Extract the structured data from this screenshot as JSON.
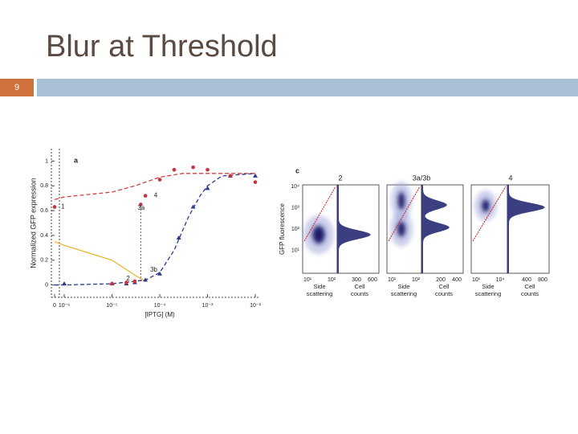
{
  "slide": {
    "title": "Blur at Threshold",
    "number": "9"
  },
  "chart_data": {
    "type": "line",
    "panel_label": "a",
    "xlabel": "[IPTG] (M)",
    "ylabel": "Normalized GFP expression",
    "xscale": "log",
    "x_zero_break": true,
    "xlim": [
      1e-06,
      0.01
    ],
    "ylim": [
      -0.1,
      1.1
    ],
    "xticks": [
      0,
      {
        "value": 1e-06,
        "label": "10⁻⁶"
      },
      {
        "value": 1e-05,
        "label": "10⁻⁵"
      },
      {
        "value": 0.0001,
        "label": "10⁻⁴"
      },
      {
        "value": 0.001,
        "label": "10⁻³"
      },
      {
        "value": 0.01,
        "label": "10⁻²"
      }
    ],
    "yticks": [
      0,
      0.2,
      0.4,
      0.6,
      0.8,
      1
    ],
    "series": [
      {
        "mode": "line",
        "dash": true,
        "color": "#d04040",
        "x": [
          0,
          1e-06,
          1e-05,
          3e-05,
          0.0001,
          0.0003,
          0.001,
          0.01
        ],
        "values": [
          0.69,
          0.71,
          0.75,
          0.8,
          0.87,
          0.9,
          0.9,
          0.9
        ]
      },
      {
        "mode": "line",
        "dash": true,
        "color": "#2b3a8c",
        "x": [
          0,
          1e-06,
          1e-05,
          5e-05,
          0.0001,
          0.0002,
          0.0004,
          0.0007,
          0.001,
          0.002,
          0.01
        ],
        "values": [
          0,
          0,
          0.01,
          0.04,
          0.1,
          0.28,
          0.55,
          0.72,
          0.8,
          0.88,
          0.9
        ]
      },
      {
        "mode": "line",
        "dash": false,
        "color": "#e8b830",
        "x": [
          0,
          1e-06,
          1e-05,
          3e-05,
          5e-05
        ],
        "values": [
          0.35,
          0.32,
          0.2,
          0.08,
          0.03
        ]
      },
      {
        "mode": "markers",
        "marker": "triangle",
        "color": "#2b3a8c",
        "x": [
          1e-06,
          1e-05,
          2e-05,
          3e-05,
          5e-05,
          0.0001,
          0.00025,
          0.0005,
          0.001,
          0.003,
          0.01
        ],
        "values": [
          0.01,
          0.01,
          0.01,
          0.02,
          0.04,
          0.09,
          0.38,
          0.63,
          0.78,
          0.88,
          0.88
        ]
      },
      {
        "mode": "markers",
        "marker": "circle",
        "color": "#c8323c",
        "x": [
          0,
          1e-05,
          2e-05,
          3e-05,
          4e-05,
          5e-05,
          0.0001,
          0.0002,
          0.0005,
          0.001,
          0.003,
          0.01
        ],
        "values": [
          0.63,
          0.01,
          0.02,
          0.03,
          0.65,
          0.72,
          0.85,
          0.93,
          0.95,
          0.93,
          0.88,
          0.83
        ]
      }
    ],
    "annotations": [
      "1",
      "2",
      "3a",
      "3b",
      "4"
    ]
  },
  "figure_c": {
    "label": "c",
    "ylabel": "GFP fluorescence",
    "yticks": [
      "10⁴",
      "10³",
      "10²",
      "10¹"
    ],
    "xlabel_scatter": "Side scattering",
    "xlabel_hist": "Cell counts",
    "groups": [
      {
        "title": "2",
        "scatter_ticks": [
          "10¹",
          "10²"
        ],
        "hist_ticks": [
          "300",
          "600"
        ]
      },
      {
        "title": "3a/3b",
        "scatter_ticks": [
          "10¹",
          "10²"
        ],
        "hist_ticks": [
          "200",
          "400"
        ]
      },
      {
        "title": "4",
        "scatter_ticks": [
          "10¹",
          "10⁴"
        ],
        "hist_ticks": [
          "400",
          "800"
        ]
      }
    ]
  }
}
